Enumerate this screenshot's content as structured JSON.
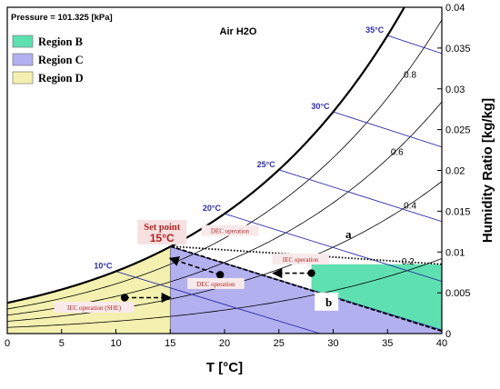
{
  "chart_data": {
    "type": "psychrometric",
    "header_left": "Pressure = 101.325 [kPa]",
    "header_center": "Air H2O",
    "xlabel": "T [°C]",
    "ylabel": "Humidity Ratio [kg/kg]",
    "xlim": [
      0,
      40
    ],
    "ylim": [
      0,
      0.04
    ],
    "x_ticks": [
      0,
      5,
      10,
      15,
      20,
      25,
      30,
      35,
      40
    ],
    "y_ticks": [
      0,
      0.005,
      0.01,
      0.015,
      0.02,
      0.025,
      0.03,
      0.035,
      0.04
    ],
    "pressure_kpa": 101.325,
    "relative_humidity_curves": [
      {
        "rh": 0.2,
        "label": "0.2"
      },
      {
        "rh": 0.4,
        "label": "0.4"
      },
      {
        "rh": 0.6,
        "label": "0.6"
      },
      {
        "rh": 0.8,
        "label": "0.8"
      }
    ],
    "wet_bulb_lines": [
      {
        "twb": 10,
        "label": "10°C"
      },
      {
        "twb": 15,
        "label": ""
      },
      {
        "twb": 20,
        "label": "20°C"
      },
      {
        "twb": 25,
        "label": "25°C"
      },
      {
        "twb": 30,
        "label": "30°C"
      },
      {
        "twb": 35,
        "label": "35°C"
      }
    ],
    "legend": {
      "position": "top-left",
      "items": [
        {
          "label": "Region B",
          "color": "#5fe0b0"
        },
        {
          "label": "Region C",
          "color": "#b3b0f0"
        },
        {
          "label": "Region D",
          "color": "#f4f1b0"
        }
      ]
    },
    "regions": {
      "D": {
        "color": "#f4f1b0",
        "x_range": [
          0,
          15
        ],
        "bounded_by": "saturation curve"
      },
      "C": {
        "color": "#b3b0f0",
        "x_range": [
          15,
          40
        ],
        "bounded_by": "wet-bulb 15°C line"
      },
      "B": {
        "color": "#5fe0b0",
        "x_range": [
          28,
          40
        ],
        "y_range": [
          0.0085,
          0.0107
        ]
      }
    },
    "set_point": {
      "label": "Set point",
      "value_label": "15°C",
      "x": 15,
      "y": 0.0107
    },
    "boundary_lines": [
      {
        "name": "a",
        "label": "a",
        "from": [
          15,
          0.0107
        ],
        "to": [
          40,
          0.0085
        ],
        "style": "dotted"
      },
      {
        "name": "b",
        "label": "b",
        "from": [
          15,
          0.0107
        ],
        "to": [
          40,
          0.0003
        ],
        "style": "dashed"
      }
    ],
    "operations": [
      {
        "label": "DEC operation",
        "from": [
          19.6,
          0.0072
        ],
        "to": [
          15,
          0.0092
        ],
        "label_at": [
          20.5,
          0.0123
        ]
      },
      {
        "label": "DEC operation",
        "from": [
          19.6,
          0.0072
        ],
        "to": [
          15,
          0.0092
        ],
        "label_at": [
          19.2,
          0.0058
        ]
      },
      {
        "label": "IEC operation",
        "from": [
          28,
          0.0074
        ],
        "to": [
          24.5,
          0.0074
        ],
        "label_at": [
          27,
          0.0088
        ]
      },
      {
        "label": "IEC operation (SHE)",
        "from": [
          10.8,
          0.0044
        ],
        "to": [
          15,
          0.0044
        ],
        "label_at": [
          8,
          0.0029
        ]
      }
    ]
  }
}
